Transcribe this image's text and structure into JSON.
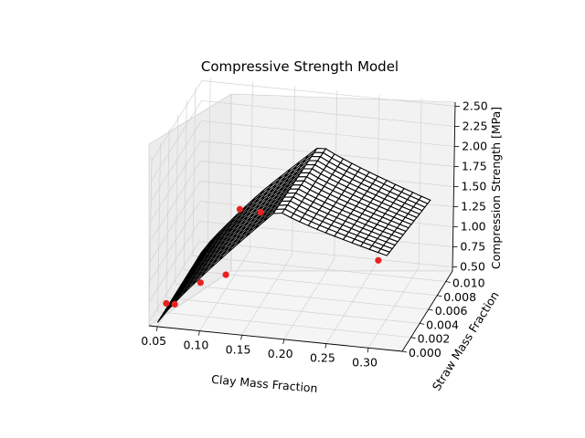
{
  "chart_data": {
    "type": "surface3d",
    "title": "Compressive Strength Model",
    "xlabel": "Clay Mass Fraction",
    "ylabel": "Straw Mass Fraction",
    "zlabel": "Compression Strength [MPa]",
    "xticks": [
      "0.05",
      "0.10",
      "0.15",
      "0.20",
      "0.25",
      "0.30"
    ],
    "yticks": [
      "0.000",
      "0.002",
      "0.004",
      "0.006",
      "0.008",
      "0.010"
    ],
    "zticks": [
      "0.50",
      "0.75",
      "1.00",
      "1.25",
      "1.50",
      "1.75",
      "2.00",
      "2.25",
      "2.50"
    ],
    "xlim": [
      0.04,
      0.34
    ],
    "ylim": [
      0.0,
      0.0115
    ],
    "zlim": [
      0.45,
      2.55
    ],
    "grid": true,
    "surface": {
      "x_range": [
        0.05,
        0.32
      ],
      "y_range": [
        0.0,
        0.01
      ],
      "edge_color": "#000000",
      "face_color": "#ffffff",
      "peak": {
        "x": 0.19,
        "z": 2.05
      },
      "low_clay_strength": 0.5,
      "high_clay_strength": 1.62
    },
    "measurements": {
      "color": "#e8231f",
      "points": [
        {
          "x": 0.06,
          "y": 0.0,
          "z": 0.75
        },
        {
          "x": 0.07,
          "y": 0.0,
          "z": 0.75
        },
        {
          "x": 0.1,
          "y": 0.0,
          "z": 1.05
        },
        {
          "x": 0.13,
          "y": 0.0,
          "z": 1.18
        },
        {
          "x": 0.12,
          "y": 0.005,
          "z": 1.55
        },
        {
          "x": 0.17,
          "y": 0.0,
          "z": 2.0
        },
        {
          "x": 0.31,
          "y": 0.0,
          "z": 1.55
        }
      ]
    }
  }
}
